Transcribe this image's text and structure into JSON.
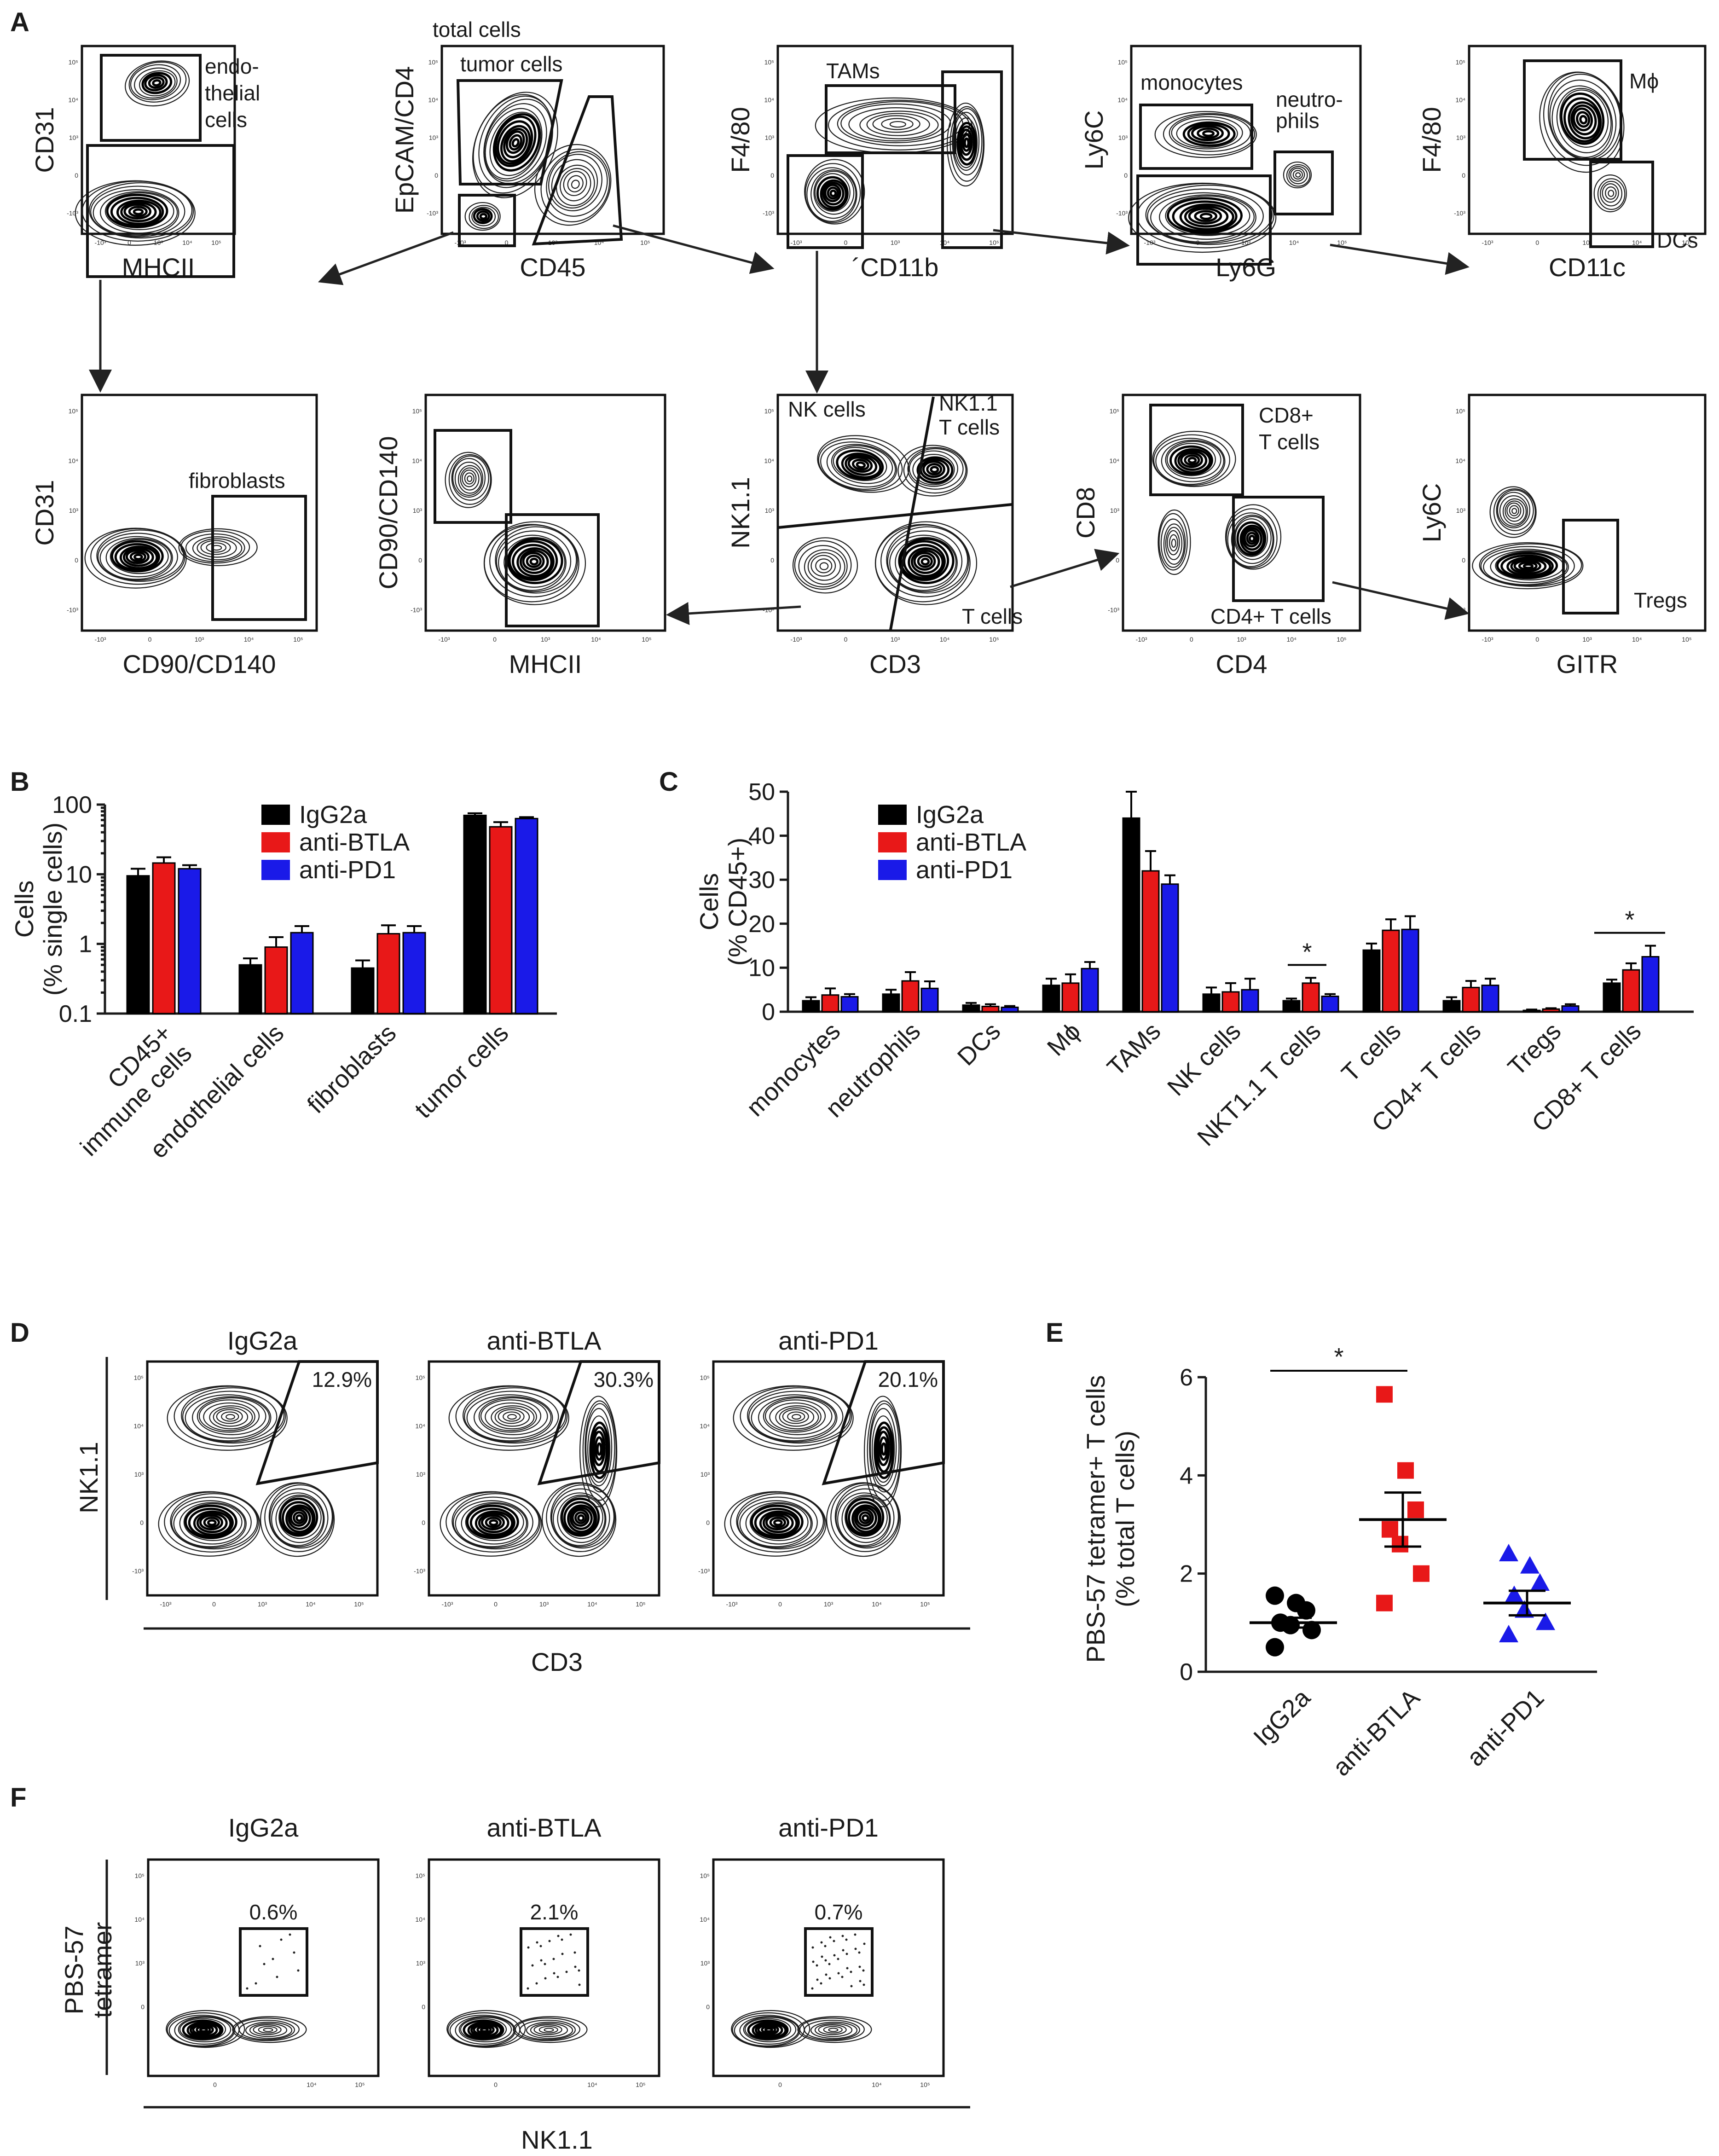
{
  "panel_labels": [
    "A",
    "B",
    "C",
    "D",
    "E",
    "F"
  ],
  "colors": {
    "IgG2a": "#000000",
    "anti-BTLA": "#e81818",
    "anti-PD1": "#1a1ae8"
  },
  "panel_a": {
    "plots": [
      {
        "id": "endo",
        "xlabel": "MHCII",
        "ylabel": "CD31",
        "gates": [
          "endo-\nthelial\ncells"
        ]
      },
      {
        "id": "cd45",
        "xlabel": "CD45",
        "ylabel": "EpCAM/CD4",
        "gates": [
          "total cells",
          "tumor cells"
        ]
      },
      {
        "id": "cd11b",
        "xlabel": "´CD11b",
        "ylabel": "F4/80",
        "gates": [
          "TAMs"
        ]
      },
      {
        "id": "ly6g",
        "xlabel": "Ly6G",
        "ylabel": "Ly6C",
        "gates": [
          "monocytes",
          "neutro-\nphils"
        ]
      },
      {
        "id": "cd11c",
        "xlabel": "CD11c",
        "ylabel": "F4/80",
        "gates": [
          "Mϕ",
          "DCs"
        ]
      },
      {
        "id": "fib",
        "xlabel": "CD90/CD140",
        "ylabel": "CD31",
        "gates": [
          "fibroblasts"
        ]
      },
      {
        "id": "mhc2",
        "xlabel": "MHCII",
        "ylabel": "CD90/CD140",
        "gates": []
      },
      {
        "id": "cd3",
        "xlabel": "CD3",
        "ylabel": "NK1.1",
        "gates": [
          "NK cells",
          "NK1.1\nT cells",
          "T cells"
        ]
      },
      {
        "id": "cd4",
        "xlabel": "CD4",
        "ylabel": "CD8",
        "gates": [
          "CD8+\nT cells",
          "CD4+ T cells"
        ]
      },
      {
        "id": "gitr",
        "xlabel": "GITR",
        "ylabel": "Ly6C",
        "gates": [
          "Tregs"
        ]
      }
    ],
    "ticks": {
      "x": [
        "-10³",
        "0",
        "10³",
        "10⁴",
        "10⁵"
      ],
      "y": [
        "10⁵",
        "10⁴",
        "10³",
        "0",
        "-10³"
      ]
    }
  },
  "chart_data": [
    {
      "panel": "B",
      "type": "bar",
      "scale": "log",
      "ylabel": "Cells\n(% single cells)",
      "yticks": [
        "100",
        "10",
        "1",
        "0.1"
      ],
      "ylim": [
        0.1,
        100
      ],
      "categories": [
        "CD45+\nimmune cells",
        "endothelial cells",
        "fibroblasts",
        "tumor cells"
      ],
      "series": [
        {
          "name": "IgG2a",
          "values": [
            9.5,
            0.5,
            0.45,
            70
          ],
          "errors": [
            2.5,
            0.12,
            0.13,
            5
          ]
        },
        {
          "name": "anti-BTLA",
          "values": [
            14.5,
            0.9,
            1.4,
            48
          ],
          "errors": [
            3,
            0.35,
            0.45,
            8
          ]
        },
        {
          "name": "anti-PD1",
          "values": [
            12,
            1.45,
            1.45,
            63
          ],
          "errors": [
            1.5,
            0.35,
            0.35,
            3
          ]
        }
      ]
    },
    {
      "panel": "C",
      "type": "bar",
      "ylabel": "Cells\n(% CD45+)",
      "yticks": [
        "50",
        "40",
        "30",
        "20",
        "10",
        "0"
      ],
      "ylim": [
        0,
        50
      ],
      "categories": [
        "monocytes",
        "neutrophils",
        "DCs",
        "Mϕ",
        "TAMs",
        "NK cells",
        "NKT1.1 T cells",
        "T cells",
        "CD4+ T cells",
        "Tregs",
        "CD8+ T cells"
      ],
      "series": [
        {
          "name": "IgG2a",
          "values": [
            2.5,
            4,
            1.5,
            6,
            44,
            4,
            2.5,
            14,
            2.5,
            0.3,
            6.5
          ],
          "errors": [
            0.8,
            1,
            0.5,
            1.5,
            6,
            1.5,
            0.5,
            1.5,
            0.8,
            0.2,
            0.8
          ]
        },
        {
          "name": "anti-BTLA",
          "values": [
            3.8,
            7,
            1.2,
            6.5,
            32,
            4.5,
            6.5,
            18.5,
            5.5,
            0.6,
            9.5
          ],
          "errors": [
            1.5,
            2,
            0.5,
            2,
            4.5,
            2,
            1.2,
            2.5,
            1.5,
            0.2,
            1.5
          ]
        },
        {
          "name": "anti-PD1",
          "values": [
            3.4,
            5.3,
            1,
            9.8,
            29,
            5,
            3.5,
            18.7,
            6,
            1.3,
            12.5
          ],
          "errors": [
            0.6,
            1.6,
            0.3,
            1.5,
            2,
            2.5,
            0.5,
            3,
            1.5,
            0.4,
            2.5
          ]
        }
      ],
      "significance": [
        {
          "index": 6,
          "label": "*"
        },
        {
          "index": 10,
          "label": "*"
        }
      ]
    },
    {
      "panel": "E",
      "type": "scatter",
      "ylabel": "PBS-57 tetramer+ T cells\n(% total T cells)",
      "yticks": [
        "6",
        "4",
        "2",
        "0"
      ],
      "ylim": [
        0,
        6
      ],
      "categories": [
        "IgG2a",
        "anti-BTLA",
        "anti-PD1"
      ],
      "groups": [
        {
          "name": "IgG2a",
          "marker": "circle",
          "values": [
            1.55,
            1.4,
            1.25,
            1.0,
            0.95,
            0.85,
            0.5
          ],
          "mean": 1.0,
          "sem_hi": 1.1,
          "sem_lo": 0.9
        },
        {
          "name": "anti-BTLA",
          "marker": "square",
          "values": [
            5.65,
            4.1,
            3.3,
            2.9,
            2.6,
            2.0,
            1.4
          ],
          "mean": 3.1,
          "sem_hi": 3.65,
          "sem_lo": 2.55
        },
        {
          "name": "anti-PD1",
          "marker": "triangle",
          "values": [
            2.4,
            2.15,
            1.8,
            1.55,
            1.25,
            1.0,
            0.75
          ],
          "mean": 1.4,
          "sem_hi": 1.65,
          "sem_lo": 1.15
        }
      ],
      "significance": {
        "from": 0,
        "to": 1,
        "label": "*"
      }
    }
  ],
  "panel_d": {
    "titles": [
      "IgG2a",
      "anti-BTLA",
      "anti-PD1"
    ],
    "percents": [
      "12.9%",
      "30.3%",
      "20.1%"
    ],
    "xlabel": "CD3",
    "ylabel": "NK1.1"
  },
  "panel_f": {
    "titles": [
      "IgG2a",
      "anti-BTLA",
      "anti-PD1"
    ],
    "percents": [
      "0.6%",
      "2.1%",
      "0.7%"
    ],
    "xlabel": "NK1.1",
    "ylabel": "PBS-57\ntetramer"
  }
}
